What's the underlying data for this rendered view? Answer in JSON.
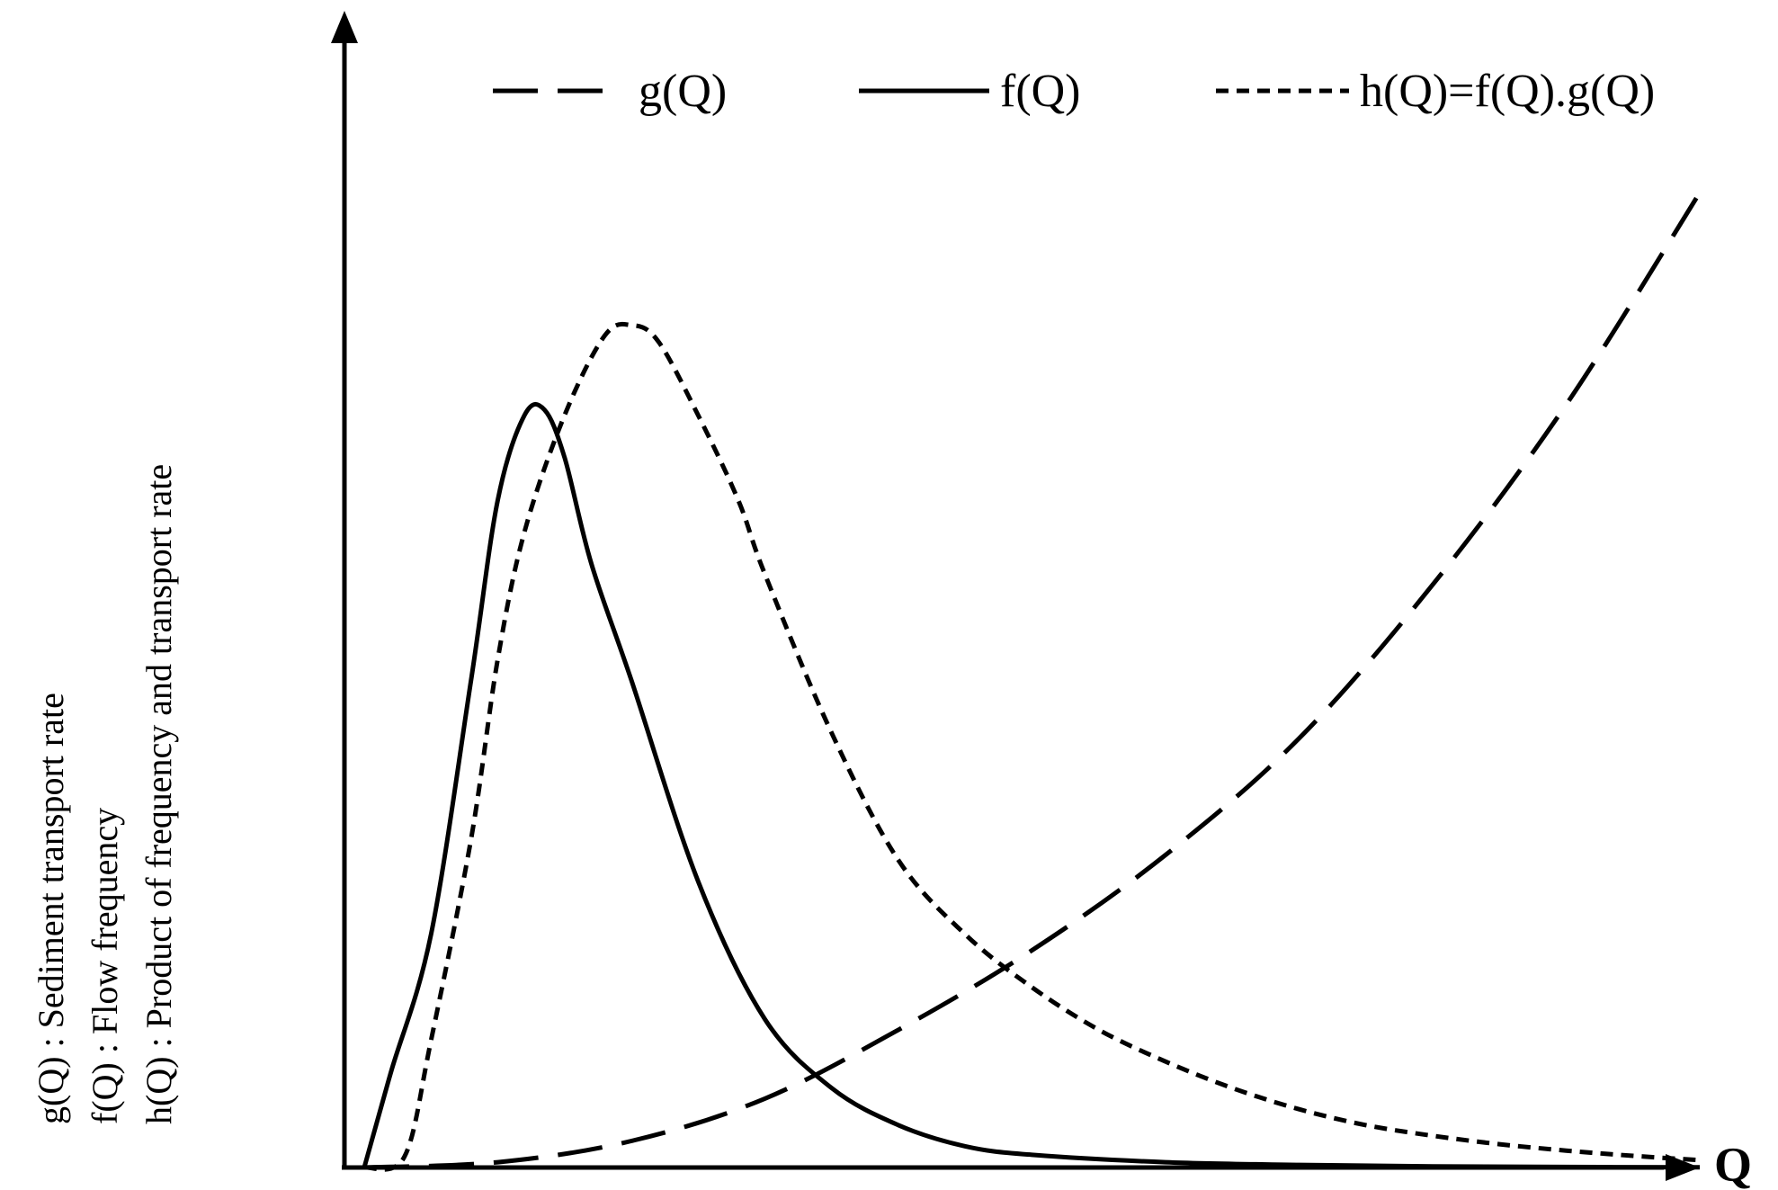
{
  "chart_data": {
    "type": "line",
    "title": "",
    "xlabel": "Q",
    "ylabel_lines": [
      "g(Q) : Sediment transport rate",
      "f(Q) : Flow frequency",
      "h(Q) : Product of frequency and transport rate"
    ],
    "xlim": [
      0,
      100
    ],
    "ylim": [
      0,
      100
    ],
    "ticks": "none",
    "grid": false,
    "legend_position": "top",
    "series": [
      {
        "name": "g(Q)",
        "line_style": "long-dash",
        "color": "#000000",
        "x": [
          0,
          10,
          20,
          30,
          40,
          50,
          60,
          70,
          80,
          90,
          100
        ],
        "y": [
          0,
          0.5,
          2.5,
          6.5,
          13,
          20.5,
          29.5,
          40.5,
          55,
          72,
          92
        ]
      },
      {
        "name": "f(Q)",
        "line_style": "solid",
        "color": "#000000",
        "x": [
          0,
          2,
          5,
          8,
          10,
          12,
          13.5,
          15,
          17,
          20,
          25,
          30,
          35,
          40,
          45,
          50,
          60,
          70,
          80,
          90,
          100
        ],
        "y": [
          0,
          9,
          22,
          46,
          63,
          71,
          71.5,
          67,
          57,
          46,
          27,
          14,
          7.5,
          4,
          2,
          1.2,
          0.5,
          0.25,
          0.1,
          0.05,
          0.02
        ]
      },
      {
        "name": "h(Q)=f(Q).g(Q)",
        "line_style": "short-dash",
        "color": "#000000",
        "x": [
          0,
          3,
          5,
          8,
          10,
          12,
          15,
          18,
          20,
          22,
          25,
          28,
          30,
          35,
          40,
          45,
          50,
          55,
          60,
          65,
          70,
          75,
          80,
          85,
          90,
          95,
          100
        ],
        "y": [
          0,
          1,
          12,
          31,
          48,
          60,
          71,
          78.5,
          79.5,
          78,
          71,
          63,
          56,
          41,
          29,
          22,
          17,
          13,
          10,
          7.5,
          5.5,
          4,
          3,
          2.2,
          1.6,
          1.1,
          0.7
        ]
      }
    ]
  }
}
